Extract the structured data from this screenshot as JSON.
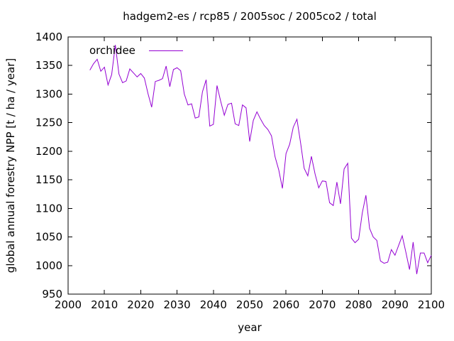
{
  "title": "hadgem2-es / rcp85 / 2005soc / 2005co2 / total",
  "legend": {
    "label": "orchidee"
  },
  "axes": {
    "x_label": "year",
    "y_label": "global annual forestry NPP [t / ha / year]",
    "x_ticks": [
      2000,
      2010,
      2020,
      2030,
      2040,
      2050,
      2060,
      2070,
      2080,
      2090,
      2100
    ],
    "y_ticks": [
      950,
      1000,
      1050,
      1100,
      1150,
      1200,
      1250,
      1300,
      1350,
      1400
    ]
  },
  "chart_data": {
    "type": "line",
    "title": "hadgem2-es / rcp85 / 2005soc / 2005co2 / total",
    "xlabel": "year",
    "ylabel": "global annual forestry NPP [t / ha / year]",
    "xlim": [
      2000,
      2100
    ],
    "ylim": [
      950,
      1400
    ],
    "grid": false,
    "legend_position": "top-left-inside",
    "line_color": "#9400D3",
    "series": [
      {
        "name": "orchidee",
        "color": "#9400D3",
        "x": [
          2006,
          2007,
          2008,
          2009,
          2010,
          2011,
          2012,
          2013,
          2014,
          2015,
          2016,
          2017,
          2018,
          2019,
          2020,
          2021,
          2022,
          2023,
          2024,
          2025,
          2026,
          2027,
          2028,
          2029,
          2030,
          2031,
          2032,
          2033,
          2034,
          2035,
          2036,
          2037,
          2038,
          2039,
          2040,
          2041,
          2042,
          2043,
          2044,
          2045,
          2046,
          2047,
          2048,
          2049,
          2050,
          2051,
          2052,
          2053,
          2054,
          2055,
          2056,
          2057,
          2058,
          2059,
          2060,
          2061,
          2062,
          2063,
          2064,
          2065,
          2066,
          2067,
          2068,
          2069,
          2070,
          2071,
          2072,
          2073,
          2074,
          2075,
          2076,
          2077,
          2078,
          2079,
          2080,
          2081,
          2082,
          2083,
          2084,
          2085,
          2086,
          2087,
          2088,
          2089,
          2090,
          2091,
          2092,
          2093,
          2094,
          2095,
          2096,
          2097,
          2098,
          2099,
          2100
        ],
        "values": [
          1342,
          1353,
          1361,
          1340,
          1347,
          1316,
          1334,
          1386,
          1335,
          1320,
          1323,
          1344,
          1337,
          1330,
          1336,
          1328,
          1301,
          1277,
          1322,
          1324,
          1327,
          1349,
          1313,
          1343,
          1346,
          1341,
          1300,
          1281,
          1283,
          1258,
          1260,
          1304,
          1325,
          1244,
          1247,
          1315,
          1288,
          1263,
          1282,
          1284,
          1248,
          1245,
          1281,
          1276,
          1217,
          1254,
          1269,
          1256,
          1245,
          1238,
          1227,
          1190,
          1167,
          1135,
          1196,
          1212,
          1242,
          1256,
          1215,
          1170,
          1157,
          1191,
          1160,
          1136,
          1148,
          1147,
          1110,
          1105,
          1146,
          1108,
          1169,
          1179,
          1048,
          1040,
          1046,
          1092,
          1123,
          1065,
          1050,
          1044,
          1008,
          1004,
          1006,
          1028,
          1018,
          1035,
          1052,
          1023,
          993,
          1041,
          985,
          1022,
          1022,
          1005,
          1018
        ]
      }
    ]
  }
}
